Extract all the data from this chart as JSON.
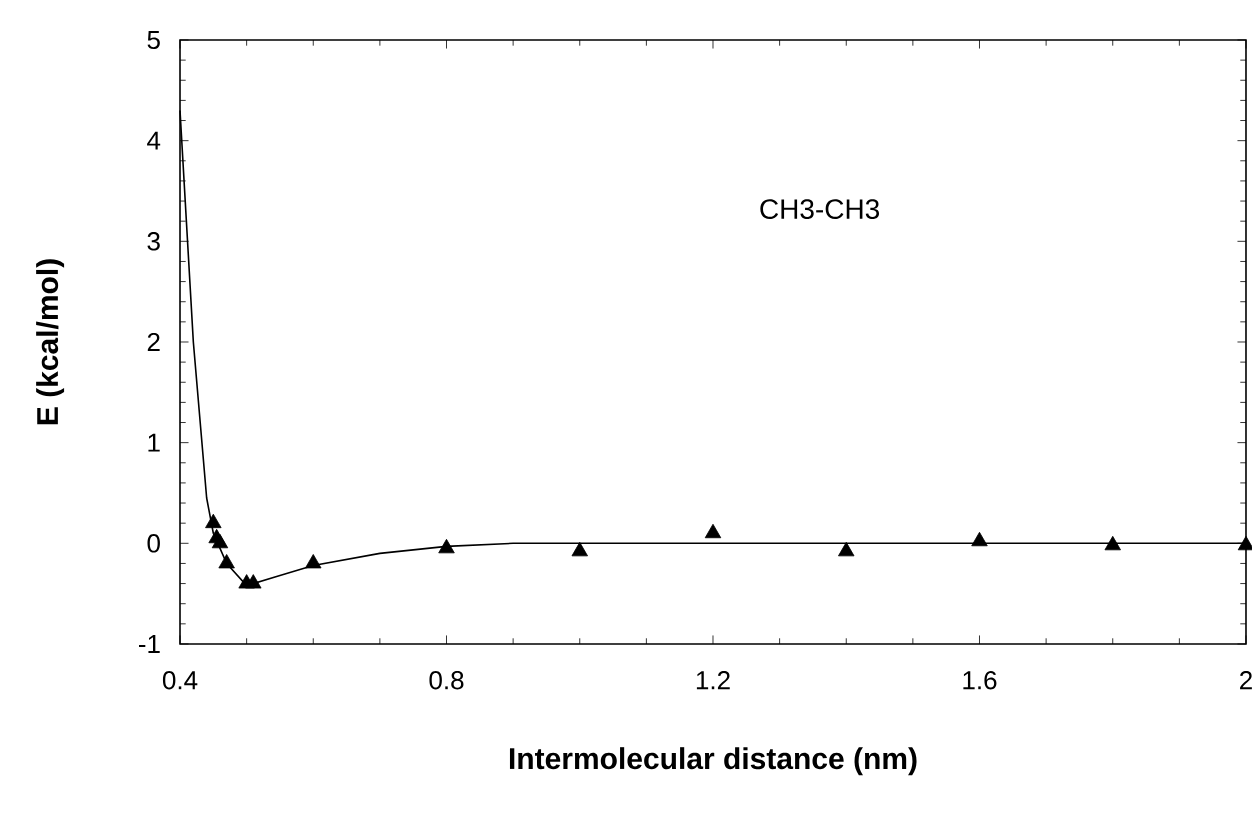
{
  "chart_data": {
    "type": "scatter",
    "xlabel": "Intermolecular distance (nm)",
    "ylabel": "E (kcal/mol)",
    "annotations": [
      "CH3-CH3"
    ],
    "xlim": [
      0.4,
      2
    ],
    "xticks": [
      0.4,
      0.8,
      1.2,
      1.6,
      2
    ],
    "ylim": [
      -1,
      5
    ],
    "yticks": [
      -1,
      0,
      1,
      2,
      3,
      4,
      5
    ],
    "series": [
      {
        "marker": "triangle",
        "color": "#000000",
        "x": [
          0.45,
          0.455,
          0.46,
          0.47,
          0.5,
          0.51,
          0.6,
          0.8,
          1.0,
          1.2,
          1.4,
          1.6,
          1.8,
          2.0
        ],
        "values": [
          0.2,
          0.05,
          0.0,
          -0.2,
          -0.4,
          -0.4,
          -0.2,
          -0.05,
          -0.08,
          0.1,
          -0.08,
          0.02,
          -0.02,
          -0.02
        ]
      },
      {
        "type": "line",
        "marker": "none",
        "line_style": "solid",
        "color": "#000000",
        "x": [
          0.4,
          0.42,
          0.44,
          0.45,
          0.47,
          0.5,
          0.55,
          0.6,
          0.7,
          0.8,
          0.9,
          1.2,
          1.6,
          2.0
        ],
        "values": [
          4.3,
          2.0,
          0.45,
          0.1,
          -0.2,
          -0.42,
          -0.32,
          -0.22,
          -0.1,
          -0.03,
          0.0,
          0.0,
          0.0,
          0.0
        ]
      }
    ]
  }
}
